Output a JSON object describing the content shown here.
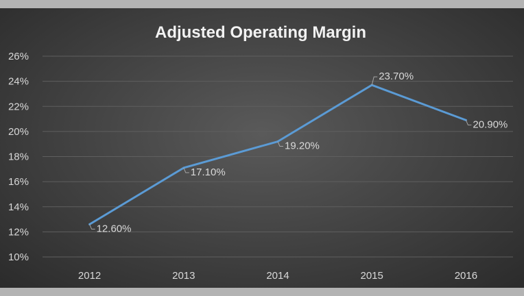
{
  "chart_data": {
    "type": "line",
    "title": "Adjusted Operating Margin",
    "categories": [
      "2012",
      "2013",
      "2014",
      "2015",
      "2016"
    ],
    "series": [
      {
        "values": [
          12.6,
          17.1,
          19.2,
          23.7,
          20.9
        ],
        "labels": [
          "12.60%",
          "17.10%",
          "19.20%",
          "23.70%",
          "20.90%"
        ]
      }
    ],
    "ylim": [
      10,
      26
    ],
    "yticks": [
      "10%",
      "12%",
      "14%",
      "16%",
      "18%",
      "20%",
      "22%",
      "24%",
      "26%"
    ],
    "grid": true,
    "legend": "none",
    "colors": {
      "series": "#5b9bd5",
      "background": "#404040",
      "text": "#d9d9d9"
    }
  }
}
